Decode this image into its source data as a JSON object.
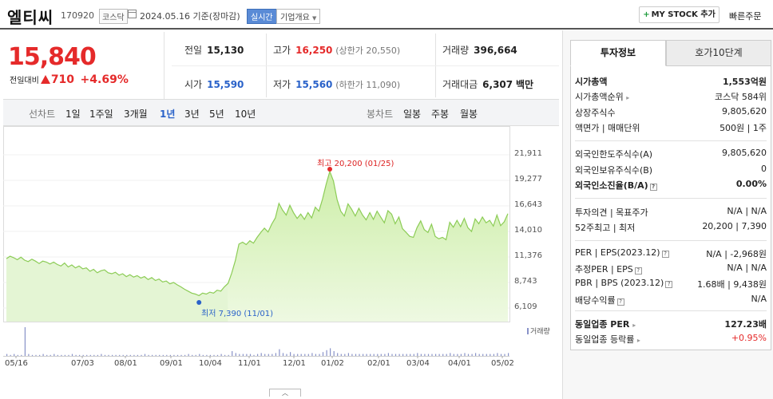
{
  "header": {
    "name": "엘티씨",
    "code": "170920",
    "market": "코스닥",
    "date": "2024.05.16  기준(장마감)",
    "realtime": "실시간",
    "company_info": "기업개요",
    "mystock_plus": "+",
    "mystock_label": "MY STOCK 추가",
    "quick_order": "빠른주문"
  },
  "price": {
    "current": "15,840",
    "change_label": "전일대비",
    "change": "710",
    "change_pct": "+4.69%"
  },
  "summary": {
    "prev_k": "전일",
    "prev_v": "15,130",
    "high_k": "고가",
    "high_v": "16,250",
    "high_sub": "(상한가 20,550)",
    "volume_k": "거래량",
    "volume_v": "396,664",
    "open_k": "시가",
    "open_v": "15,590",
    "low_k": "저가",
    "low_v": "15,560",
    "low_sub": "(하한가 11,090)",
    "amount_k": "거래대금",
    "amount_v": "6,307",
    "amount_unit": "백만"
  },
  "periods": {
    "line_label": "선차트",
    "line": [
      "1일",
      "1주일",
      "3개월",
      "1년",
      "3년",
      "5년",
      "10년"
    ],
    "active": "1년",
    "candle_label": "봉차트",
    "candle": [
      "일봉",
      "주봉",
      "월봉"
    ]
  },
  "chart_data": {
    "type": "area",
    "y_ticks": [
      "21,911",
      "19,277",
      "16,643",
      "14,010",
      "11,376",
      "8,743",
      "6,109"
    ],
    "ylim": [
      6109,
      21911
    ],
    "x_ticks": [
      "05/16",
      "07/03",
      "08/01",
      "09/01",
      "10/04",
      "11/01",
      "12/01",
      "01/02",
      "02/01",
      "03/04",
      "04/01",
      "05/02"
    ],
    "high_label": "최고 20,200 (01/25)",
    "low_label": "최저 7,390 (11/01)",
    "volume_label": "거래량",
    "series": [
      {
        "values": [
          11200,
          11450,
          11300,
          11100,
          11350,
          11050,
          10900,
          11150,
          10950,
          10700,
          10950,
          10850,
          10650,
          10850,
          10600,
          10450,
          10750,
          10350,
          10550,
          10250,
          10450,
          10150,
          10250,
          9900,
          10100,
          9750,
          9950,
          10050,
          9750,
          9650,
          9800,
          9500,
          9650,
          9350,
          9550,
          9300,
          9450,
          9200,
          9350,
          9050,
          9250,
          8950,
          9100,
          8800,
          8900,
          8600,
          8750,
          8500,
          8300,
          8050,
          7850,
          7650,
          7550,
          7390,
          7650,
          7550,
          7750,
          7650,
          7950,
          7850,
          8300,
          8650,
          9700,
          11000,
          12700,
          12900,
          12650,
          13050,
          12800,
          13400,
          13900,
          14350,
          13950,
          14750,
          15400,
          16900,
          16200,
          15700,
          16700,
          15950,
          15350,
          15800,
          15250,
          15950,
          15400,
          16500,
          16100,
          17350,
          18900,
          20200,
          19200,
          17300,
          16100,
          15600,
          16850,
          16300,
          15600,
          16400,
          15700,
          15200,
          15950,
          15250,
          16100,
          15500,
          14900,
          16150,
          15800,
          14800,
          15500,
          14300,
          13900,
          13500,
          13400,
          14400,
          15100,
          14200,
          13900,
          14750,
          13500,
          13250,
          13400,
          13150,
          14950,
          14450,
          15150,
          14500,
          15350,
          14400,
          14000,
          15300,
          14800,
          15500,
          14900,
          15150,
          14550,
          15700,
          14600,
          15000,
          15840
        ]
      }
    ],
    "volume": [
      2,
      1,
      2,
      1,
      1,
      30,
      2,
      1,
      1,
      1,
      2,
      1,
      1,
      2,
      1,
      1,
      1,
      1,
      2,
      1,
      1,
      1,
      1,
      1,
      1,
      1,
      2,
      1,
      1,
      1,
      1,
      1,
      1,
      1,
      1,
      1,
      1,
      1,
      2,
      1,
      1,
      1,
      1,
      1,
      1,
      1,
      1,
      1,
      1,
      1,
      2,
      1,
      1,
      2,
      1,
      1,
      1,
      1,
      1,
      2,
      1,
      1,
      5,
      3,
      2,
      2,
      2,
      2,
      1,
      2,
      3,
      2,
      2,
      2,
      3,
      7,
      3,
      2,
      4,
      2,
      2,
      2,
      2,
      2,
      3,
      2,
      2,
      4,
      6,
      8,
      5,
      3,
      2,
      2,
      3,
      2,
      2,
      2,
      2,
      2,
      2,
      2,
      2,
      2,
      2,
      3,
      2,
      2,
      2,
      2,
      2,
      2,
      2,
      3,
      2,
      2,
      2,
      2,
      2,
      2,
      2,
      2,
      3,
      2,
      2,
      2,
      3,
      2,
      2,
      3,
      2,
      2,
      2,
      2,
      2,
      3,
      2,
      2,
      3
    ]
  },
  "right_panel": {
    "tab1": "투자정보",
    "tab2": "호가10단계",
    "mcap_k": "시가총액",
    "mcap_v": "1,553억원",
    "rank_k": "시가총액순위",
    "rank_v": "코스닥 584위",
    "shares_k": "상장주식수",
    "shares_v": "9,805,620",
    "par_k": "액면가 | 매매단위",
    "par_v": "500원 | 1주",
    "flimit_k": "외국인한도주식수(A)",
    "flimit_v": "9,805,620",
    "fhold_k": "외국인보유주식수(B)",
    "fhold_v": "0",
    "fratio_k": "외국인소진율(B/A)",
    "fratio_v": "0.00%",
    "opinion_k": "투자의견 | 목표주가",
    "opinion_v": "N/A | N/A",
    "w52_k": "52주최고 | 최저",
    "w52_v": "20,200 | 7,390",
    "per_k": "PER | EPS(2023.12)",
    "per_v": "N/A | -2,968원",
    "eper_k": "추정PER | EPS",
    "eper_v": "N/A | N/A",
    "pbr_k": "PBR | BPS (2023.12)",
    "pbr_v": "1.68배 | 9,438원",
    "div_k": "배당수익률",
    "div_v": "N/A",
    "sector_per_k": "동일업종 PER",
    "sector_per_v": "127.23배",
    "sector_chg_k": "동일업종 등락률",
    "sector_chg_v": "+0.95%"
  }
}
